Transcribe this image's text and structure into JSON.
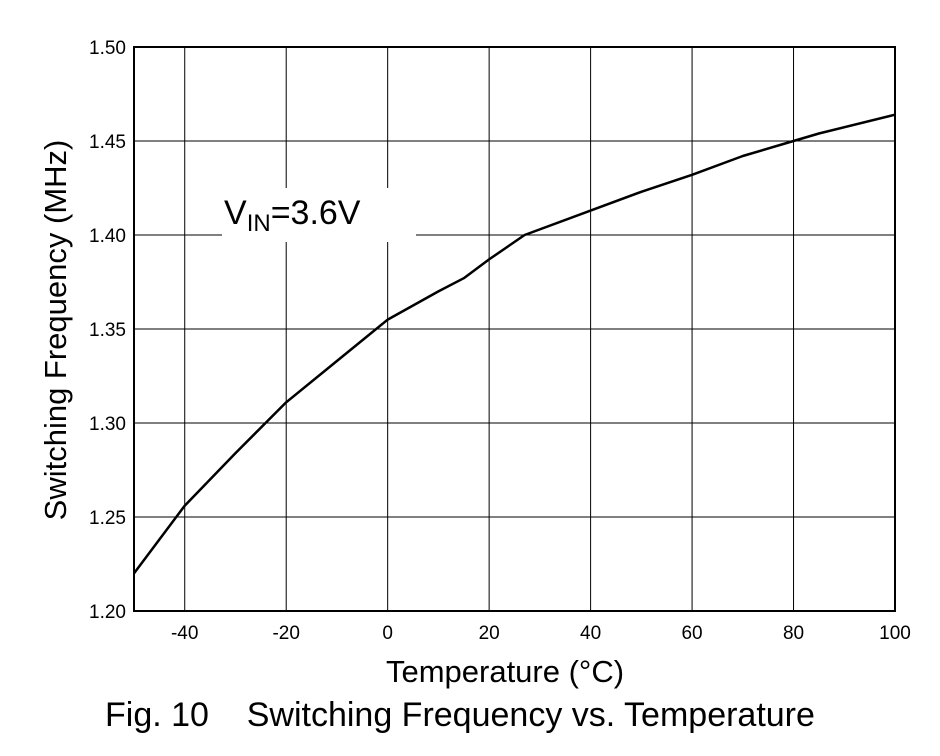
{
  "chart_data": {
    "type": "line",
    "title": "",
    "xlabel": "Temperature (°C)",
    "ylabel": "Switching Frequency (MHz)",
    "xlim": [
      -50,
      100
    ],
    "ylim": [
      1.2,
      1.5
    ],
    "x_ticks": [
      -40,
      -20,
      0,
      20,
      40,
      60,
      80,
      100
    ],
    "x_tick_labels": [
      "-40",
      "-20",
      "0",
      "20",
      "40",
      "60",
      "80",
      "100"
    ],
    "y_ticks": [
      1.2,
      1.25,
      1.3,
      1.35,
      1.4,
      1.45,
      1.5
    ],
    "y_tick_labels": [
      "1.20",
      "1.25",
      "1.30",
      "1.35",
      "1.40",
      "1.45",
      "1.50"
    ],
    "grid": true,
    "series": [
      {
        "x": [
          -50,
          -40,
          -30,
          -20,
          -10,
          0,
          10,
          15,
          20,
          27,
          40,
          50,
          60,
          70,
          80,
          85,
          100
        ],
        "y": [
          1.22,
          1.256,
          1.284,
          1.311,
          1.333,
          1.355,
          1.37,
          1.377,
          1.387,
          1.4,
          1.413,
          1.423,
          1.432,
          1.442,
          1.45,
          1.454,
          1.464
        ],
        "color": "#000000"
      }
    ],
    "annotation": {
      "main": "V",
      "sub": "IN",
      "rest": "=3.6V"
    }
  },
  "caption": "Fig. 10    Switching Frequency vs. Temperature"
}
